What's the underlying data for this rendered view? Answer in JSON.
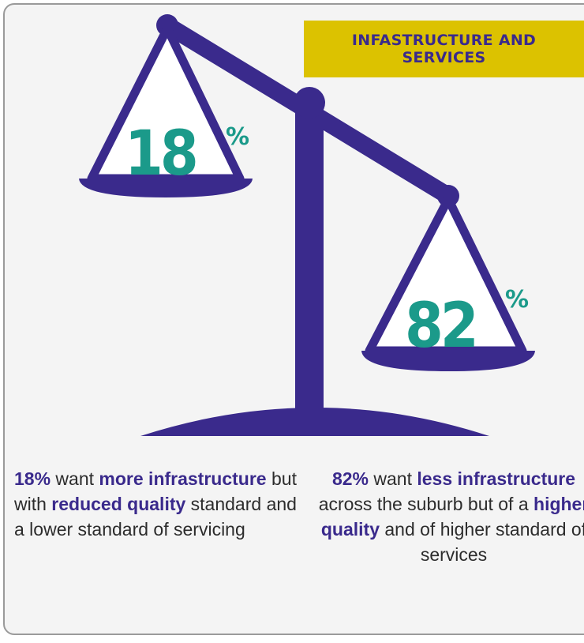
{
  "badge": {
    "text": "INFASTRUCTURE AND SERVICES"
  },
  "left_pan": {
    "value": "18",
    "unit": "%"
  },
  "right_pan": {
    "value": "82",
    "unit": "%"
  },
  "left_caption": {
    "pct": "18%",
    "t1": " want ",
    "b1": "more infrastructure",
    "t2": " but with ",
    "b2": "reduced quality",
    "t3": " standard and a lower standard of servicing"
  },
  "right_caption": {
    "pct": "82%",
    "t1": " want ",
    "b1": "less infrastructure",
    "t2": " across the suburb but of a ",
    "b2": "higher quality",
    "t3": " and of higher standard of services"
  },
  "colors": {
    "scale": "#3a2a8c",
    "accent": "#1b9a8a",
    "badge": "#dcc200",
    "background": "#f4f4f4"
  }
}
